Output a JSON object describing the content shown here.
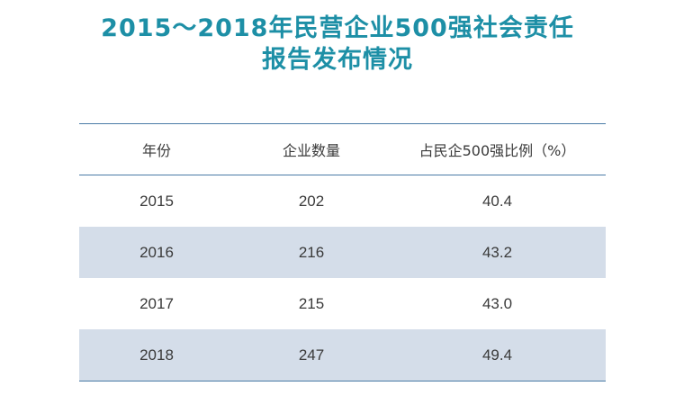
{
  "title": {
    "line1": "2015～2018年民营企业500强社会责任",
    "line2": "报告发布情况"
  },
  "table": {
    "headers": [
      "年份",
      "企业数量",
      "占民企500强比例（%）"
    ],
    "rows": [
      [
        "2015",
        "202",
        "40.4"
      ],
      [
        "2016",
        "216",
        "43.2"
      ],
      [
        "2017",
        "215",
        "43.0"
      ],
      [
        "2018",
        "247",
        "49.4"
      ]
    ]
  },
  "colors": {
    "title": "#1d8fa6",
    "row_shade": "#d4dde9",
    "rule": "#4a7ba6"
  }
}
